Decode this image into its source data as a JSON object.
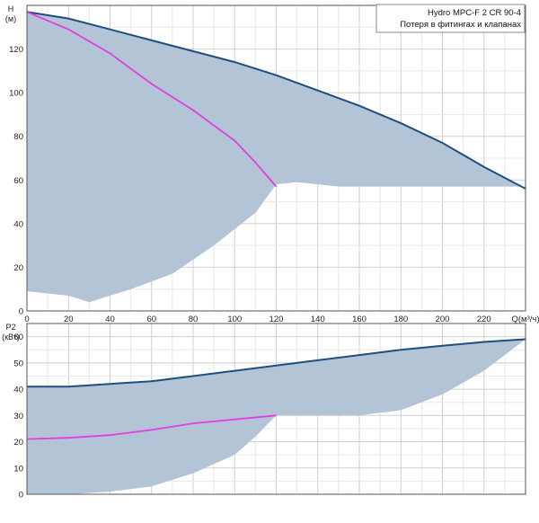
{
  "chart_data": [
    {
      "type": "line",
      "legend": {
        "title": "Hydro MPC-F 2 CR 90-4",
        "subtitle": "Потеря в фитингах и клапанах"
      },
      "xlabel": "Q(м³/ч)",
      "ylabel_top": "H",
      "ylabel_bottom": "(м)",
      "xlim": [
        0,
        240
      ],
      "ylim": [
        0,
        140
      ],
      "xticks": [
        "0",
        "20",
        "40",
        "60",
        "80",
        "100",
        "120",
        "140",
        "160",
        "180",
        "200",
        "220"
      ],
      "yticks": [
        "0",
        "20",
        "40",
        "60",
        "80",
        "100",
        "120"
      ],
      "grid": true,
      "area": {
        "color": "#b3c4d7",
        "upper": [
          [
            0,
            137
          ],
          [
            20,
            134
          ],
          [
            40,
            129
          ],
          [
            60,
            124
          ],
          [
            80,
            119
          ],
          [
            100,
            114
          ],
          [
            120,
            108
          ],
          [
            140,
            101
          ],
          [
            160,
            94
          ],
          [
            180,
            86
          ],
          [
            200,
            77
          ],
          [
            220,
            66
          ],
          [
            240,
            56
          ]
        ],
        "lower": [
          [
            0,
            9
          ],
          [
            20,
            7
          ],
          [
            30,
            4
          ],
          [
            50,
            10
          ],
          [
            70,
            17
          ],
          [
            90,
            30
          ],
          [
            110,
            45
          ],
          [
            120,
            58
          ],
          [
            130,
            59
          ],
          [
            140,
            58
          ],
          [
            150,
            57
          ],
          [
            240,
            57
          ]
        ]
      },
      "series": [
        {
          "color": "#1e4f7d",
          "x": [
            0,
            20,
            40,
            60,
            80,
            100,
            120,
            140,
            160,
            180,
            200,
            220,
            240
          ],
          "y": [
            137,
            134,
            129,
            124,
            119,
            114,
            108,
            101,
            94,
            86,
            77,
            66,
            56
          ]
        },
        {
          "color": "#e23ee0",
          "x": [
            0,
            20,
            40,
            60,
            80,
            100,
            110,
            120
          ],
          "y": [
            137,
            129,
            118,
            104,
            92,
            78,
            68,
            57
          ]
        }
      ]
    },
    {
      "type": "line",
      "ylabel_top": "P2",
      "ylabel_bottom": "(кВт)",
      "xlim": [
        0,
        240
      ],
      "ylim": [
        0,
        65
      ],
      "yticks": [
        "0",
        "10",
        "20",
        "30",
        "40",
        "50",
        "60"
      ],
      "grid": true,
      "area": {
        "color": "#b3c4d7",
        "upper": [
          [
            0,
            41
          ],
          [
            20,
            41
          ],
          [
            40,
            42
          ],
          [
            60,
            43
          ],
          [
            80,
            45
          ],
          [
            100,
            47
          ],
          [
            120,
            49
          ],
          [
            140,
            51
          ],
          [
            160,
            53
          ],
          [
            180,
            55
          ],
          [
            200,
            56.5
          ],
          [
            220,
            58
          ],
          [
            240,
            59
          ]
        ],
        "lower": [
          [
            0,
            0
          ],
          [
            20,
            0
          ],
          [
            40,
            1
          ],
          [
            60,
            3
          ],
          [
            80,
            8
          ],
          [
            100,
            15
          ],
          [
            110,
            22
          ],
          [
            120,
            30
          ],
          [
            140,
            30
          ],
          [
            160,
            30
          ],
          [
            180,
            32
          ],
          [
            200,
            38
          ],
          [
            220,
            47
          ],
          [
            240,
            59
          ]
        ]
      },
      "series": [
        {
          "color": "#1e4f7d",
          "x": [
            0,
            20,
            40,
            60,
            80,
            100,
            120,
            140,
            160,
            180,
            200,
            220,
            240
          ],
          "y": [
            41,
            41,
            42,
            43,
            45,
            47,
            49,
            51,
            53,
            55,
            56.5,
            58,
            59
          ]
        },
        {
          "color": "#e23ee0",
          "x": [
            0,
            20,
            40,
            60,
            80,
            100,
            120
          ],
          "y": [
            21,
            21.5,
            22.5,
            24.5,
            27,
            28.5,
            30
          ]
        }
      ]
    }
  ]
}
